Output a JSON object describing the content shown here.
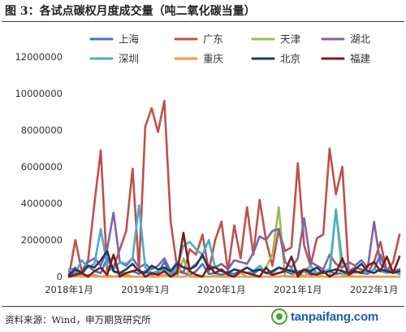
{
  "figure": {
    "title": "图 3：各试点碳权月度成交量（吨二氧化碳当量）",
    "source": "资料来源：Wind，申万期货研究所",
    "watermark": "tanpaifang.com"
  },
  "chart_data": {
    "type": "line",
    "title": "",
    "xlabel": "",
    "ylabel": "",
    "ylim": [
      0,
      12000000
    ],
    "yticks": [
      0,
      2000000,
      4000000,
      6000000,
      8000000,
      10000000,
      12000000
    ],
    "ytick_labels": [
      "0",
      "2000000",
      "4000000",
      "6000000",
      "8000000",
      "10000000",
      "12000000"
    ],
    "xtick_labels": [
      "2018年1月",
      "2019年1月",
      "2020年1月",
      "2021年1月",
      "2022年1月"
    ],
    "xtick_index": [
      0,
      12,
      24,
      36,
      48
    ],
    "grid": false,
    "legend_position": "top",
    "x": [
      "2018-01",
      "2018-02",
      "2018-03",
      "2018-04",
      "2018-05",
      "2018-06",
      "2018-07",
      "2018-08",
      "2018-09",
      "2018-10",
      "2018-11",
      "2018-12",
      "2019-01",
      "2019-02",
      "2019-03",
      "2019-04",
      "2019-05",
      "2019-06",
      "2019-07",
      "2019-08",
      "2019-09",
      "2019-10",
      "2019-11",
      "2019-12",
      "2020-01",
      "2020-02",
      "2020-03",
      "2020-04",
      "2020-05",
      "2020-06",
      "2020-07",
      "2020-08",
      "2020-09",
      "2020-10",
      "2020-11",
      "2020-12",
      "2021-01",
      "2021-02",
      "2021-03",
      "2021-04",
      "2021-05",
      "2021-06",
      "2021-07",
      "2021-08",
      "2021-09",
      "2021-10",
      "2021-11",
      "2021-12",
      "2022-01",
      "2022-02",
      "2022-03",
      "2022-04",
      "2022-05"
    ],
    "series": [
      {
        "name": "上海",
        "color": "#4472c4",
        "values": [
          100000,
          200000,
          150000,
          600000,
          300000,
          200000,
          1000000,
          300000,
          150000,
          200000,
          300000,
          150000,
          300000,
          100000,
          200000,
          800000,
          150000,
          300000,
          200000,
          100000,
          300000,
          700000,
          150000,
          200000,
          100000,
          200000,
          150000,
          300000,
          200000,
          150000,
          400000,
          200000,
          100000,
          200000,
          300000,
          150000,
          200000,
          300000,
          100000,
          150000,
          200000,
          300000,
          150000,
          200000,
          100000,
          300000,
          200000,
          150000,
          400000,
          1200000,
          200000,
          300000,
          150000
        ]
      },
      {
        "name": "广东",
        "color": "#c0504d",
        "values": [
          50000,
          2000000,
          300000,
          900000,
          4000000,
          6900000,
          300000,
          500000,
          1500000,
          2500000,
          5900000,
          400000,
          8200000,
          9200000,
          7900000,
          9600000,
          3000000,
          500000,
          200000,
          1500000,
          1200000,
          2300000,
          300000,
          2000000,
          3000000,
          300000,
          2800000,
          1000000,
          3800000,
          1200000,
          4200000,
          2000000,
          600000,
          2600000,
          1400000,
          1600000,
          6200000,
          1700000,
          600000,
          2100000,
          2300000,
          7000000,
          4500000,
          6000000,
          300000,
          500000,
          400000,
          200000,
          800000,
          1900000,
          300000,
          800000,
          2300000
        ]
      },
      {
        "name": "天津",
        "color": "#9bbb59",
        "values": [
          0,
          0,
          50000,
          100000,
          0,
          0,
          50000,
          0,
          0,
          100000,
          0,
          0,
          0,
          0,
          0,
          50000,
          0,
          0,
          1000000,
          0,
          0,
          0,
          0,
          50000,
          0,
          0,
          0,
          0,
          0,
          0,
          0,
          500000,
          1200000,
          3800000,
          0,
          0,
          300000,
          0,
          400000,
          200000,
          0,
          0,
          3700000,
          0,
          0,
          0,
          0,
          0,
          0,
          0,
          0,
          0,
          0
        ]
      },
      {
        "name": "湖北",
        "color": "#8064a2",
        "values": [
          300000,
          500000,
          200000,
          800000,
          1000000,
          600000,
          1500000,
          3500000,
          800000,
          600000,
          1000000,
          500000,
          700000,
          400000,
          600000,
          1000000,
          300000,
          800000,
          500000,
          400000,
          700000,
          1100000,
          600000,
          500000,
          700000,
          400000,
          900000,
          800000,
          700000,
          1300000,
          2200000,
          2000000,
          2500000,
          2600000,
          800000,
          500000,
          1000000,
          3200000,
          800000,
          600000,
          400000,
          1200000,
          700000,
          500000,
          800000,
          600000,
          900000,
          500000,
          3000000,
          700000,
          400000,
          300000,
          400000
        ]
      },
      {
        "name": "深圳",
        "color": "#4bacc6",
        "values": [
          400000,
          200000,
          900000,
          500000,
          700000,
          2600000,
          600000,
          400000,
          800000,
          700000,
          1000000,
          3900000,
          500000,
          200000,
          300000,
          400000,
          200000,
          500000,
          1700000,
          1900000,
          1500000,
          1200000,
          2000000,
          500000,
          300000,
          200000,
          400000,
          300000,
          200000,
          300000,
          600000,
          200000,
          200000,
          500000,
          300000,
          400000,
          300000,
          300000,
          600000,
          200000,
          300000,
          400000,
          3600000,
          800000,
          300000,
          200000,
          300000,
          200000,
          400000,
          300000,
          200000,
          300000,
          200000
        ]
      },
      {
        "name": "重庆",
        "color": "#f79646",
        "values": [
          0,
          50000,
          0,
          0,
          100000,
          0,
          0,
          0,
          50000,
          0,
          0,
          0,
          0,
          0,
          0,
          100000,
          0,
          0,
          0,
          50000,
          0,
          0,
          0,
          0,
          0,
          0,
          0,
          200000,
          0,
          0,
          0,
          0,
          0,
          0,
          50000,
          0,
          0,
          0,
          0,
          0,
          0,
          0,
          0,
          0,
          100000,
          0,
          0,
          0,
          0,
          0,
          0,
          0,
          0
        ]
      },
      {
        "name": "北京",
        "color": "#1f3864",
        "values": [
          100000,
          400000,
          200000,
          600000,
          500000,
          900000,
          1400000,
          300000,
          200000,
          400000,
          700000,
          300000,
          200000,
          600000,
          400000,
          500000,
          300000,
          700000,
          500000,
          400000,
          600000,
          1200000,
          400000,
          500000,
          300000,
          200000,
          400000,
          300000,
          500000,
          300000,
          400000,
          200000,
          300000,
          500000,
          400000,
          300000,
          200000,
          400000,
          300000,
          500000,
          200000,
          300000,
          400000,
          300000,
          200000,
          400000,
          700000,
          300000,
          200000,
          400000,
          300000,
          200000,
          300000
        ]
      },
      {
        "name": "福建",
        "color": "#7b1c1c",
        "values": [
          0,
          100000,
          200000,
          0,
          300000,
          500000,
          100000,
          1200000,
          0,
          200000,
          300000,
          400000,
          0,
          200000,
          100000,
          300000,
          0,
          200000,
          2400000,
          300000,
          100000,
          0,
          600000,
          200000,
          400000,
          100000,
          0,
          300000,
          200000,
          100000,
          0,
          500000,
          100000,
          200000,
          300000,
          1100000,
          0,
          400000,
          200000,
          100000,
          300000,
          0,
          200000,
          1000000,
          100000,
          300000,
          200000,
          600000,
          800000,
          300000,
          1100000,
          200000,
          1100000
        ]
      }
    ]
  }
}
